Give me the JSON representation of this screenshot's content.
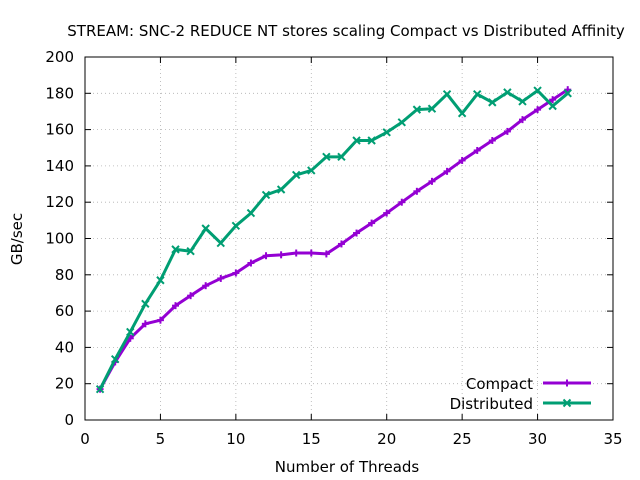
{
  "chart_data": {
    "type": "line",
    "title": "STREAM: SNC-2 REDUCE NT stores scaling Compact vs Distributed Affinity",
    "xlabel": "Number of Threads",
    "ylabel": "GB/sec",
    "xlim": [
      0,
      35
    ],
    "ylim": [
      0,
      200
    ],
    "xticks": [
      0,
      5,
      10,
      15,
      20,
      25,
      30,
      35
    ],
    "yticks": [
      0,
      20,
      40,
      60,
      80,
      100,
      120,
      140,
      160,
      180,
      200
    ],
    "grid": true,
    "legend_position": "bottom-right",
    "x": [
      1,
      2,
      3,
      4,
      5,
      6,
      7,
      8,
      9,
      10,
      11,
      12,
      13,
      14,
      15,
      16,
      17,
      18,
      19,
      20,
      21,
      22,
      23,
      24,
      25,
      26,
      27,
      28,
      29,
      30,
      31,
      32
    ],
    "series": [
      {
        "name": "Compact",
        "color": "#9400d3",
        "marker": "plus",
        "values": [
          17,
          32,
          45,
          53,
          55,
          63,
          68.5,
          74,
          78,
          81,
          86.5,
          90.5,
          91,
          92,
          92,
          91.5,
          97,
          103,
          108.5,
          114,
          120,
          126,
          131.5,
          137,
          143,
          148.5,
          154,
          159,
          165.5,
          171,
          176.5,
          182
        ]
      },
      {
        "name": "Distributed",
        "color": "#009e73",
        "marker": "x",
        "values": [
          17,
          33.5,
          48.5,
          64,
          77,
          94,
          93,
          105.5,
          97.5,
          107,
          114,
          124,
          127,
          135,
          137.5,
          145,
          145,
          154,
          154,
          158.5,
          164,
          171,
          171.5,
          179.5,
          169,
          179.5,
          175,
          180.5,
          175.5,
          181.5,
          173,
          180
        ]
      }
    ]
  }
}
